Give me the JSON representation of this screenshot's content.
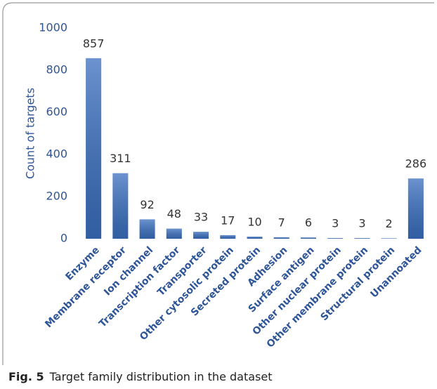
{
  "chart_data": {
    "type": "bar",
    "y_label": "Count of targets",
    "categories": [
      "Enzyme",
      "Membrane receptor",
      "Ion channel",
      "Transcription factor",
      "Transporter",
      "Other cytosolic protein",
      "Secreted protein",
      "Adhesion",
      "Surface antigen",
      "Other nuclear protein",
      "Other membrane protein",
      "Structural protein",
      "Unannoated"
    ],
    "values": [
      857,
      311,
      92,
      48,
      33,
      17,
      10,
      7,
      6,
      3,
      3,
      2,
      286
    ],
    "color": "#3a6fbf",
    "ylim": [
      0,
      1000
    ],
    "yticks": [
      0,
      200,
      400,
      600,
      800,
      1000
    ],
    "grid": false
  },
  "figure": {
    "label": "Fig. 5",
    "caption": "Target family distribution in the dataset"
  }
}
